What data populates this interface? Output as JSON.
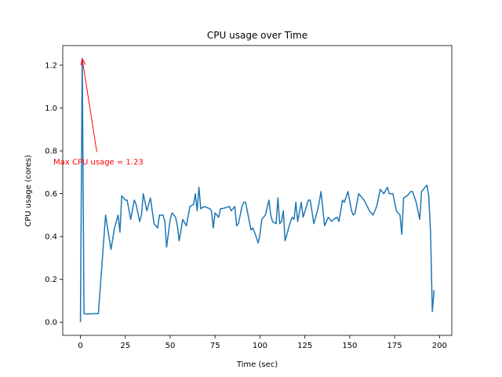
{
  "chart_data": {
    "type": "line",
    "title": "CPU usage over Time",
    "xlabel": "Time (sec)",
    "ylabel": "CPU usage (cores)",
    "color": "#1f77b4",
    "x": [
      0,
      1,
      2,
      4,
      7,
      10,
      14,
      17,
      19,
      21,
      22,
      23,
      25,
      26,
      28,
      30,
      31,
      33,
      34,
      35,
      37,
      39,
      41,
      43,
      44,
      46,
      47,
      48,
      50,
      51,
      53,
      54,
      55,
      57,
      59,
      61,
      63,
      64,
      65,
      66,
      67,
      69,
      72,
      73,
      74,
      75,
      77,
      78,
      79,
      83,
      84,
      86,
      87,
      88,
      90,
      91,
      92,
      95,
      96,
      97,
      99,
      100,
      101,
      103,
      105,
      106,
      107,
      109,
      110,
      111,
      112,
      113,
      114,
      117,
      118,
      119,
      120,
      121,
      123,
      124,
      127,
      128,
      130,
      132,
      133,
      134,
      136,
      138,
      140,
      141,
      143,
      144,
      146,
      147,
      149,
      151,
      152,
      153,
      155,
      157,
      158,
      161,
      163,
      165,
      167,
      169,
      171,
      172,
      174,
      176,
      178,
      179,
      180,
      182,
      184,
      185,
      187,
      189,
      190,
      193,
      194,
      195,
      196,
      197
    ],
    "values": [
      0,
      1.23,
      0.04,
      0.038,
      0.04,
      0.04,
      0.5,
      0.34,
      0.44,
      0.5,
      0.42,
      0.59,
      0.57,
      0.57,
      0.48,
      0.57,
      0.55,
      0.47,
      0.5,
      0.6,
      0.52,
      0.58,
      0.46,
      0.44,
      0.5,
      0.5,
      0.47,
      0.35,
      0.48,
      0.51,
      0.49,
      0.45,
      0.38,
      0.48,
      0.45,
      0.54,
      0.55,
      0.6,
      0.52,
      0.63,
      0.53,
      0.54,
      0.53,
      0.52,
      0.44,
      0.51,
      0.49,
      0.53,
      0.53,
      0.54,
      0.52,
      0.54,
      0.45,
      0.46,
      0.54,
      0.56,
      0.56,
      0.43,
      0.44,
      0.42,
      0.37,
      0.41,
      0.48,
      0.5,
      0.57,
      0.5,
      0.47,
      0.46,
      0.58,
      0.46,
      0.47,
      0.52,
      0.38,
      0.47,
      0.49,
      0.48,
      0.56,
      0.47,
      0.56,
      0.49,
      0.57,
      0.57,
      0.46,
      0.52,
      0.56,
      0.61,
      0.45,
      0.49,
      0.47,
      0.48,
      0.49,
      0.47,
      0.57,
      0.56,
      0.61,
      0.52,
      0.5,
      0.51,
      0.6,
      0.58,
      0.57,
      0.52,
      0.5,
      0.54,
      0.62,
      0.6,
      0.63,
      0.6,
      0.6,
      0.52,
      0.5,
      0.41,
      0.58,
      0.59,
      0.61,
      0.61,
      0.56,
      0.48,
      0.61,
      0.64,
      0.59,
      0.42,
      0.05,
      0.15
    ],
    "xlim": [
      -9.85,
      206.85
    ],
    "ylim": [
      -0.0615,
      1.2915
    ],
    "xticks": [
      0,
      25,
      50,
      75,
      100,
      125,
      150,
      175,
      200
    ],
    "yticks": [
      {
        "value": 0,
        "label": "0.0"
      },
      {
        "value": 0.2,
        "label": "0.2"
      },
      {
        "value": 0.4,
        "label": "0.4"
      },
      {
        "value": 0.6,
        "label": "0.6"
      },
      {
        "value": 0.8,
        "label": "0.8"
      },
      {
        "value": 1.0,
        "label": "1.0"
      },
      {
        "value": 1.2,
        "label": "1.2"
      }
    ],
    "annotation": {
      "text": "Max CPU usage = 1.23",
      "color": "#ff0000",
      "xy": [
        1,
        1.23
      ],
      "xytext": [
        10,
        0.75
      ]
    }
  }
}
